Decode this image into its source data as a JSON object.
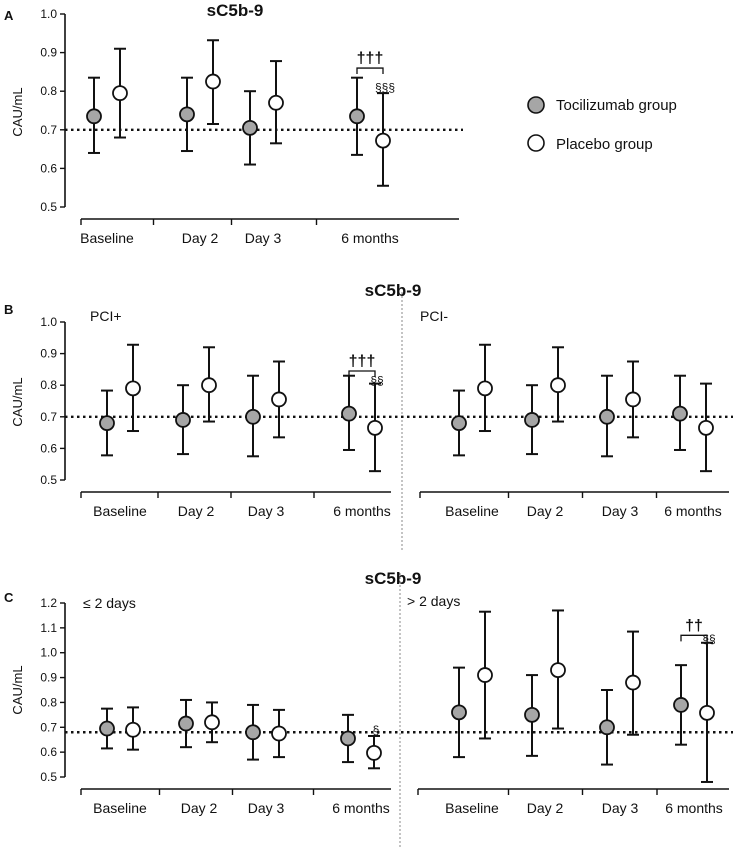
{
  "legend": {
    "tocilizumab": "Tocilizumab group",
    "placebo": "Placebo group"
  },
  "colors": {
    "tocilizumab": "#a6a6a6",
    "placebo": "#ffffff",
    "line": "#111111"
  },
  "chart_data": [
    {
      "id": "A",
      "type": "scatter",
      "subtype": "dot-with-error-bars",
      "title": "sC5b-9",
      "ylabel": "CAU/mL",
      "ylim": [
        0.5,
        1.0
      ],
      "yticks": [
        "0.5",
        "0.6",
        "0.7",
        "0.8",
        "0.9",
        "1.0"
      ],
      "reference_line": 0.7,
      "categories": [
        "Baseline",
        "Day 2",
        "Day 3",
        "6 months"
      ],
      "groups": [
        {
          "label": "",
          "series": [
            {
              "name": "Tocilizumab group",
              "values": [
                0.735,
                0.74,
                0.705,
                0.735
              ],
              "lower": [
                0.64,
                0.645,
                0.61,
                0.635
              ],
              "upper": [
                0.835,
                0.835,
                0.8,
                0.835
              ]
            },
            {
              "name": "Placebo group",
              "values": [
                0.795,
                0.825,
                0.77,
                0.672
              ],
              "lower": [
                0.68,
                0.715,
                0.665,
                0.555
              ],
              "upper": [
                0.91,
                0.932,
                0.878,
                0.795
              ]
            }
          ],
          "annotations": [
            {
              "category": "6 months",
              "text": "†††",
              "type": "bracket",
              "ypos": 0.86
            },
            {
              "category": "6 months",
              "text": "§§§",
              "type": "mark",
              "series": "Placebo group",
              "ypos": 0.81
            }
          ]
        }
      ]
    },
    {
      "id": "B",
      "type": "scatter",
      "subtype": "dot-with-error-bars",
      "title": "sC5b-9",
      "ylabel": "CAU/mL",
      "ylim": [
        0.5,
        1.0
      ],
      "yticks": [
        "0.5",
        "0.6",
        "0.7",
        "0.8",
        "0.9",
        "1.0"
      ],
      "reference_line": 0.7,
      "categories": [
        "Baseline",
        "Day 2",
        "Day 3",
        "6 months"
      ],
      "groups": [
        {
          "label": "PCI+",
          "series": [
            {
              "name": "Tocilizumab group",
              "values": [
                0.68,
                0.69,
                0.7,
                0.71
              ],
              "lower": [
                0.578,
                0.582,
                0.575,
                0.595
              ],
              "upper": [
                0.783,
                0.8,
                0.83,
                0.83
              ]
            },
            {
              "name": "Placebo group",
              "values": [
                0.79,
                0.8,
                0.755,
                0.665
              ],
              "lower": [
                0.655,
                0.685,
                0.635,
                0.528
              ],
              "upper": [
                0.928,
                0.92,
                0.875,
                0.805
              ]
            }
          ],
          "annotations": [
            {
              "category": "6 months",
              "text": "†††",
              "type": "bracket",
              "ypos": 0.845
            },
            {
              "category": "6 months",
              "text": "§§",
              "type": "mark",
              "series": "Placebo group",
              "ypos": 0.815
            }
          ]
        },
        {
          "label": "PCI-",
          "series": [
            {
              "name": "Tocilizumab group",
              "values": [
                0.68,
                0.69,
                0.7,
                0.71
              ],
              "lower": [
                0.578,
                0.582,
                0.575,
                0.595
              ],
              "upper": [
                0.783,
                0.8,
                0.83,
                0.83
              ]
            },
            {
              "name": "Placebo group",
              "values": [
                0.79,
                0.8,
                0.755,
                0.665
              ],
              "lower": [
                0.655,
                0.685,
                0.635,
                0.528
              ],
              "upper": [
                0.928,
                0.92,
                0.875,
                0.805
              ]
            }
          ],
          "annotations": []
        }
      ]
    },
    {
      "id": "C",
      "type": "scatter",
      "subtype": "dot-with-error-bars",
      "title": "sC5b-9",
      "ylabel": "CAU/mL",
      "ylim": [
        0.5,
        1.2
      ],
      "yticks": [
        "0.5",
        "0.6",
        "0.7",
        "0.8",
        "0.9",
        "1.0",
        "1.1",
        "1.2"
      ],
      "reference_line": 0.68,
      "categories": [
        "Baseline",
        "Day 2",
        "Day 3",
        "6 months"
      ],
      "groups": [
        {
          "label": "≤ 2 days",
          "series": [
            {
              "name": "Tocilizumab group",
              "values": [
                0.695,
                0.715,
                0.68,
                0.655
              ],
              "lower": [
                0.615,
                0.62,
                0.57,
                0.56
              ],
              "upper": [
                0.775,
                0.81,
                0.79,
                0.75
              ]
            },
            {
              "name": "Placebo group",
              "values": [
                0.69,
                0.72,
                0.675,
                0.597
              ],
              "lower": [
                0.61,
                0.64,
                0.58,
                0.535
              ],
              "upper": [
                0.78,
                0.8,
                0.77,
                0.665
              ]
            }
          ],
          "annotations": [
            {
              "category": "6 months",
              "text": "§",
              "type": "mark",
              "series": "Placebo group",
              "ypos": 0.69
            }
          ]
        },
        {
          "label": "> 2 days",
          "series": [
            {
              "name": "Tocilizumab group",
              "values": [
                0.76,
                0.75,
                0.7,
                0.79
              ],
              "lower": [
                0.58,
                0.585,
                0.55,
                0.63
              ],
              "upper": [
                0.94,
                0.91,
                0.85,
                0.95
              ]
            },
            {
              "name": "Placebo group",
              "values": [
                0.91,
                0.93,
                0.88,
                0.758
              ],
              "lower": [
                0.655,
                0.695,
                0.67,
                0.48
              ],
              "upper": [
                1.165,
                1.17,
                1.085,
                1.04
              ]
            }
          ],
          "annotations": [
            {
              "category": "6 months",
              "text": "††",
              "type": "bracket",
              "ypos": 1.07
            },
            {
              "category": "6 months",
              "text": "§§",
              "type": "mark",
              "series": "Placebo group",
              "ypos": 1.055
            }
          ]
        }
      ]
    }
  ]
}
